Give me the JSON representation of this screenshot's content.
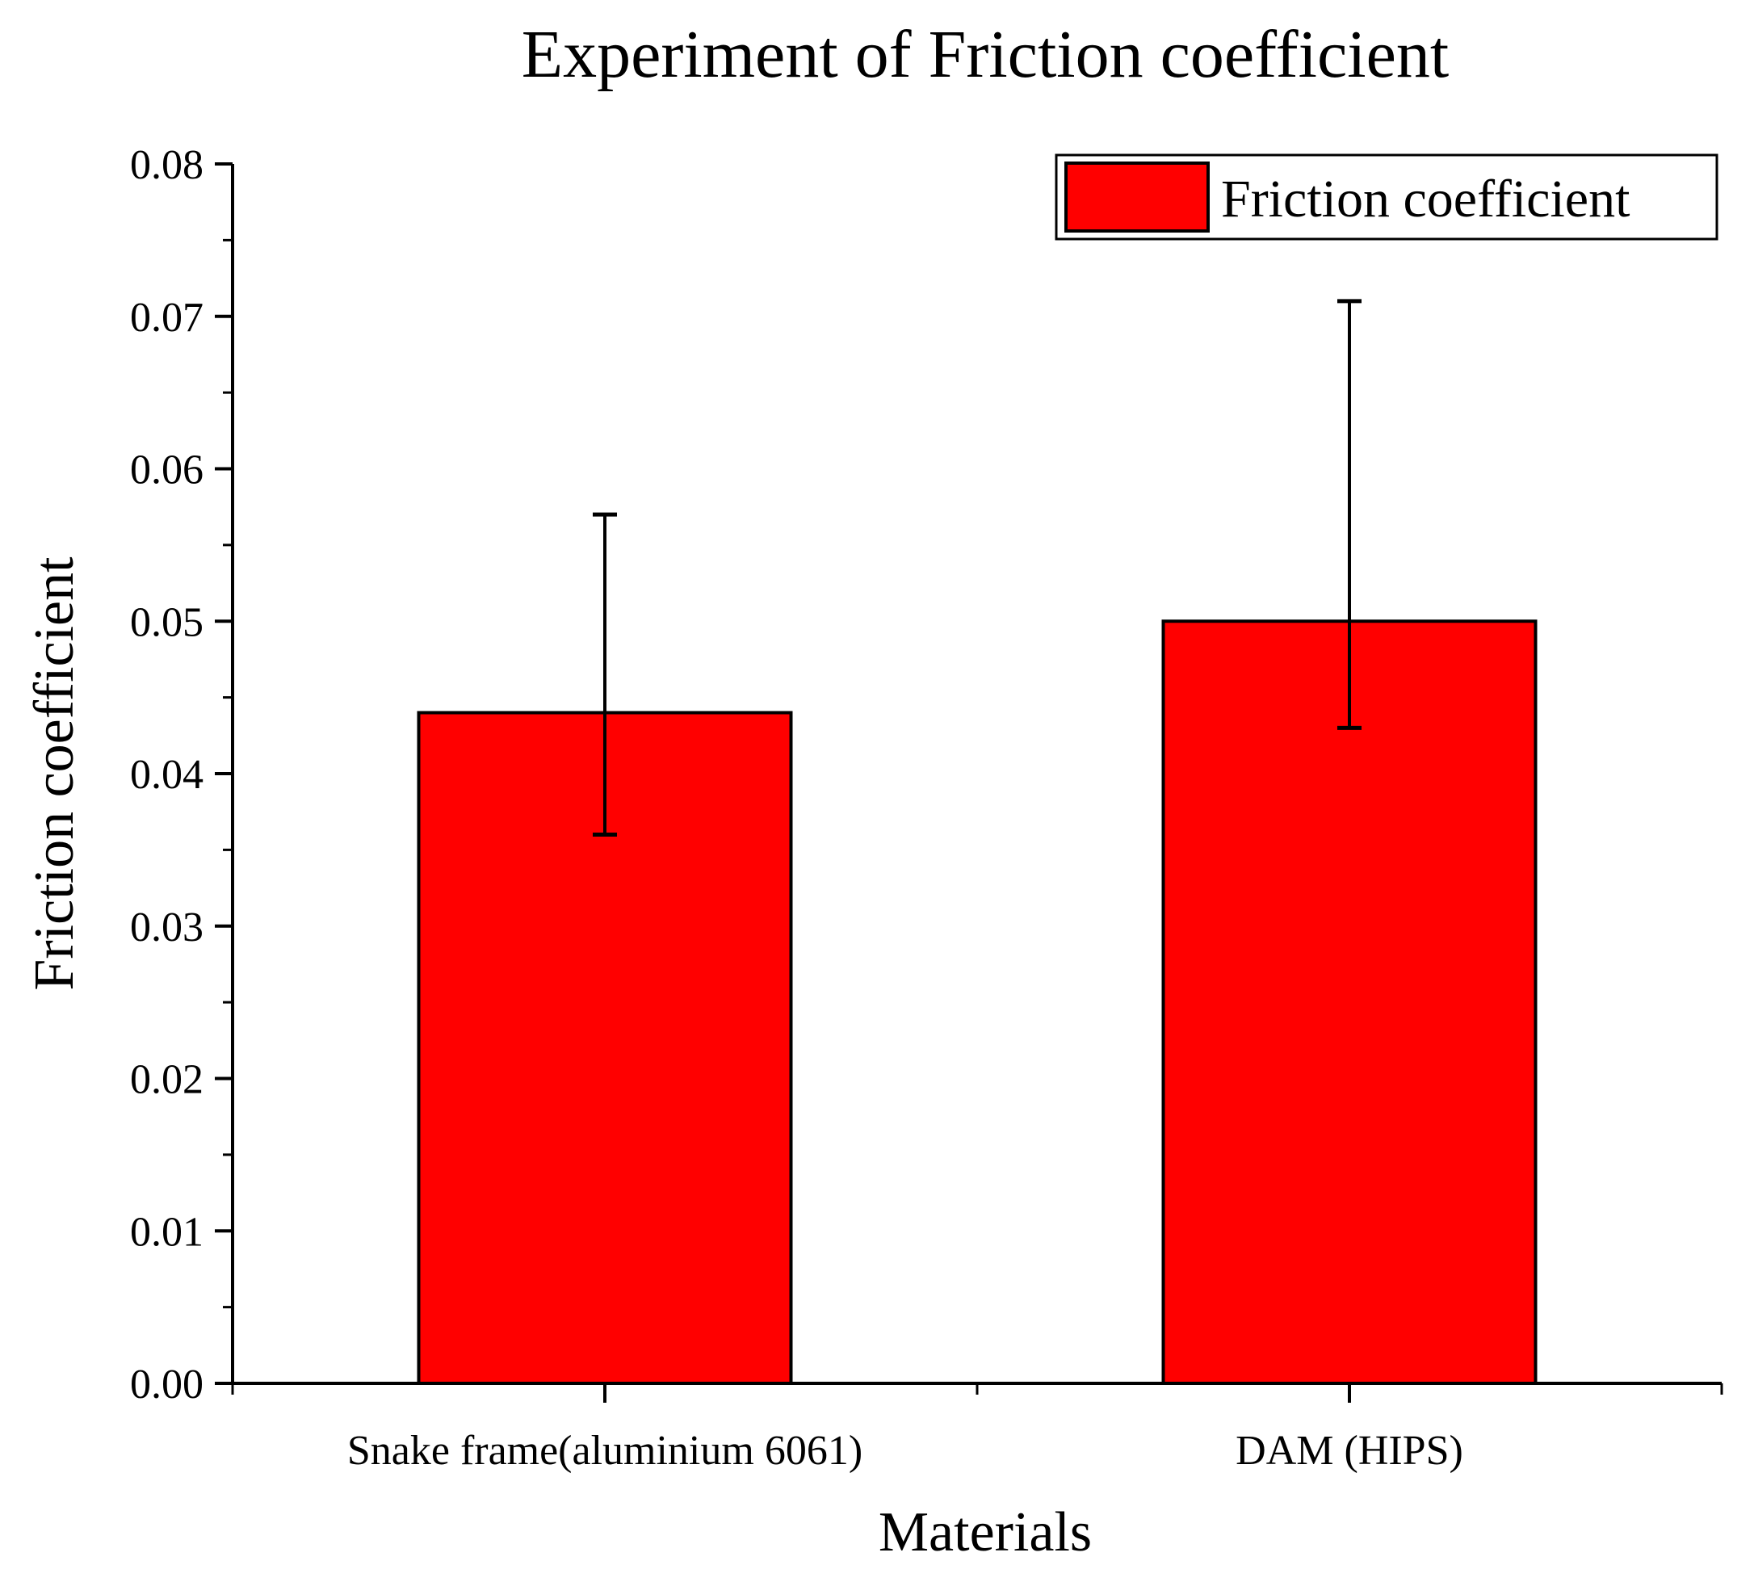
{
  "chart_data": {
    "type": "bar",
    "title": "Experiment of Friction coefficient",
    "xlabel": "Materials",
    "ylabel": "Friction coefficient",
    "categories": [
      "Snake frame(aluminium 6061)",
      "DAM (HIPS)"
    ],
    "series": [
      {
        "name": "Friction coefficient",
        "values": [
          0.044,
          0.05
        ],
        "error_low": [
          0.036,
          0.043
        ],
        "error_high": [
          0.057,
          0.071
        ],
        "color": "#ff0000"
      }
    ],
    "ylim": [
      0,
      0.08
    ],
    "yticks": [
      "0.00",
      "0.01",
      "0.02",
      "0.03",
      "0.04",
      "0.05",
      "0.06",
      "0.07",
      "0.08"
    ],
    "grid": false,
    "legend_position": "top-right"
  }
}
